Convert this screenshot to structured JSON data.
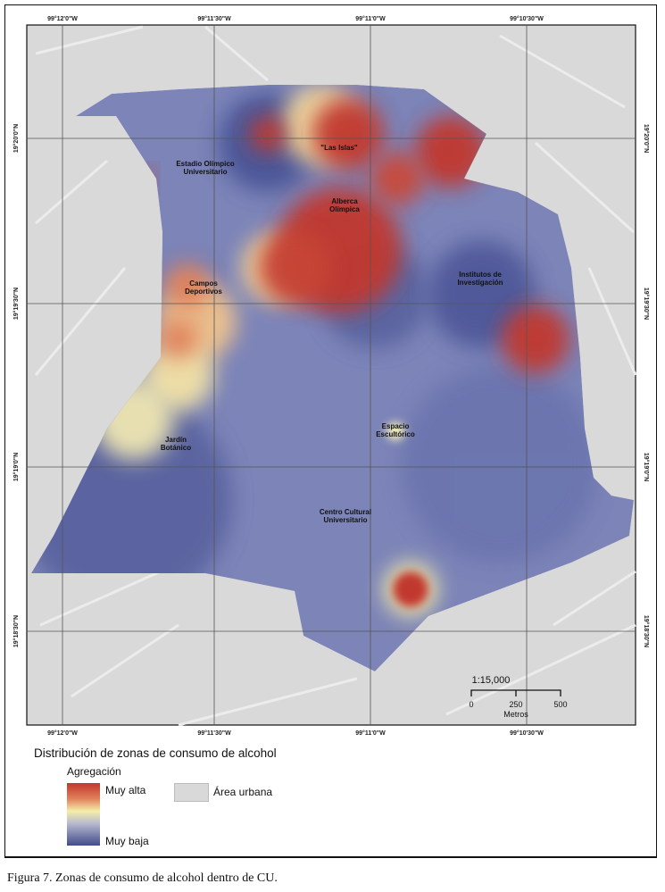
{
  "map": {
    "longitude_labels": [
      "99°12'0\"W",
      "99°11'30\"W",
      "99°11'0\"W",
      "99°10'30\"W"
    ],
    "latitude_labels": [
      "19°20'0\"N",
      "19°19'30\"N",
      "19°19'0\"N",
      "19°18'30\"N"
    ],
    "places": [
      {
        "lines": [
          "\"Las Islas\""
        ]
      },
      {
        "lines": [
          "Estadio Olímpico",
          "Universitario"
        ]
      },
      {
        "lines": [
          "Alberca",
          "Olímpica"
        ]
      },
      {
        "lines": [
          "Campos",
          "Deportivos"
        ]
      },
      {
        "lines": [
          "Institutos de",
          "Investigación"
        ]
      },
      {
        "lines": [
          "Jardín",
          "Botánico"
        ]
      },
      {
        "lines": [
          "Espacio",
          "Escultórico"
        ]
      },
      {
        "lines": [
          "Centro Cultural",
          "Universitario"
        ]
      }
    ],
    "scale": {
      "ratio": "1:15,000",
      "ticks": [
        "0",
        "250",
        "500"
      ],
      "unit": "Metros"
    },
    "colors": {
      "muy_alta": "#c1372d",
      "media": "#f5eeaa",
      "muy_baja": "#424c8a",
      "urban": "#d9d9d9"
    }
  },
  "legend": {
    "title": "Distribución de zonas de consumo de alcohol",
    "ramp_title": "Agregación",
    "high": "Muy alta",
    "low": "Muy baja",
    "urban": "Área urbana"
  },
  "caption": "Figura 7. Zonas de consumo de alcohol dentro de CU."
}
